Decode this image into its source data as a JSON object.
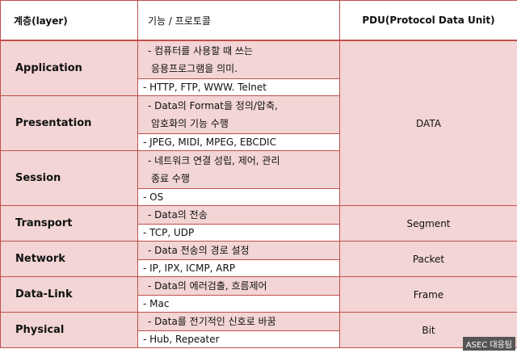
{
  "header": {
    "layer": "계층(layer)",
    "function": "기능 / 프로토콜",
    "pdu": "PDU(Protocol Data Unit)"
  },
  "rows": [
    {
      "layer": "Application",
      "desc": [
        "- 컴퓨터를 사용할 때 쓰는",
        "응용프로그램을 의미."
      ],
      "proto": "- HTTP, FTP, WWW. Telnet"
    },
    {
      "layer": "Presentation",
      "desc": [
        "- Data의 Format을 정의/압축,",
        "암호화의 기능 수행"
      ],
      "proto": "- JPEG, MIDI, MPEG, EBCDIC"
    },
    {
      "layer": "Session",
      "desc": [
        "- 네트워크 연결 성립, 제어, 관리",
        "종료 수행"
      ],
      "proto": "- OS"
    },
    {
      "layer": "Transport",
      "desc": [
        "- Data의 전송"
      ],
      "proto": "- TCP, UDP"
    },
    {
      "layer": "Network",
      "desc": [
        "- Data 전송의 경로 설정"
      ],
      "proto": "- IP, IPX, ICMP, ARP"
    },
    {
      "layer": "Data-Link",
      "desc": [
        "- Data의 에러검출, 흐름제어"
      ],
      "proto": "- Mac"
    },
    {
      "layer": "Physical",
      "desc": [
        "- Data를 전기적인 신호로 바꿈"
      ],
      "proto": "- Hub, Repeater"
    }
  ],
  "pdu": [
    "DATA",
    "Segment",
    "Packet",
    "Frame",
    "Bit"
  ],
  "watermark": "ASEC 대응팀",
  "colors": {
    "border": "#c0504d",
    "fill": "#f2d5d4"
  }
}
